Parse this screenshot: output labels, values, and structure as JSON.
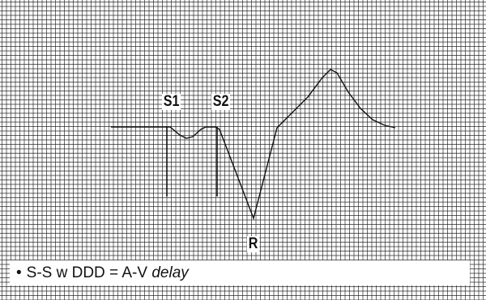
{
  "labels": {
    "s1": "S1",
    "s2": "S2",
    "r": "R"
  },
  "caption": {
    "bullet": "•",
    "main_text": "S-S w DDD = A-V",
    "italic_text": "delay"
  },
  "colors": {
    "grid": "#2b2b2b",
    "trace": "#111111",
    "background": "#ffffff"
  }
}
